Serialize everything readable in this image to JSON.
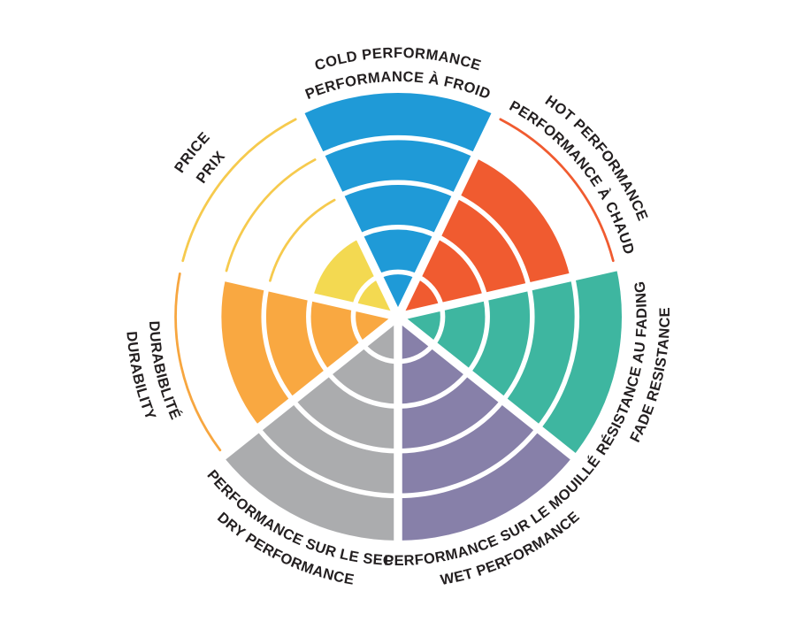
{
  "page": {
    "background": "#FFFFFF",
    "label_text_color": "#231F20"
  },
  "chart_data": {
    "type": "polar-wheel",
    "title": "",
    "max_level": 5,
    "levels": 5,
    "legend_position": "around",
    "grid": "white separators over filled sectors, thin colored outline arcs for unfilled levels",
    "segments": [
      {
        "id": "cold",
        "label_en": "COLD PERFORMANCE",
        "label_fr": "PERFORMANCE À FROID",
        "value": 5,
        "color": "#1F9AD7",
        "outline_color": "#1F9AD7"
      },
      {
        "id": "hot",
        "label_en": "HOT PERFORMANCE",
        "label_fr": "PERFORMANCE À CHAUD",
        "value": 4,
        "color": "#F05B30",
        "outline_color": "#F05B30"
      },
      {
        "id": "fade",
        "label_en": "FADE RESISTANCE",
        "label_fr": "RÉSISTANCE AU FADING",
        "value": 5,
        "color": "#3EB6A0",
        "outline_color": "#3EB6A0"
      },
      {
        "id": "wet",
        "label_en": "WET PERFORMANCE",
        "label_fr": "PERFORMANCE SUR LE MOUILLÉ",
        "value": 5,
        "color": "#8780A9",
        "outline_color": "#8780A9"
      },
      {
        "id": "dry",
        "label_en": "DRY PERFORMANCE",
        "label_fr": "PERFORMANCE SUR LE SEC",
        "value": 5,
        "color": "#ABACAE",
        "outline_color": "#ABACAE"
      },
      {
        "id": "durability",
        "label_en": "DURABILITY",
        "label_fr": "DURABIBLITÉ",
        "value": 4,
        "color": "#F9A841",
        "outline_color": "#F7A63F"
      },
      {
        "id": "price",
        "label_en": "PRICE",
        "label_fr": "PRIX",
        "value": 2,
        "color": "#F3D951",
        "outline_color": "#F6CA4D"
      }
    ]
  }
}
